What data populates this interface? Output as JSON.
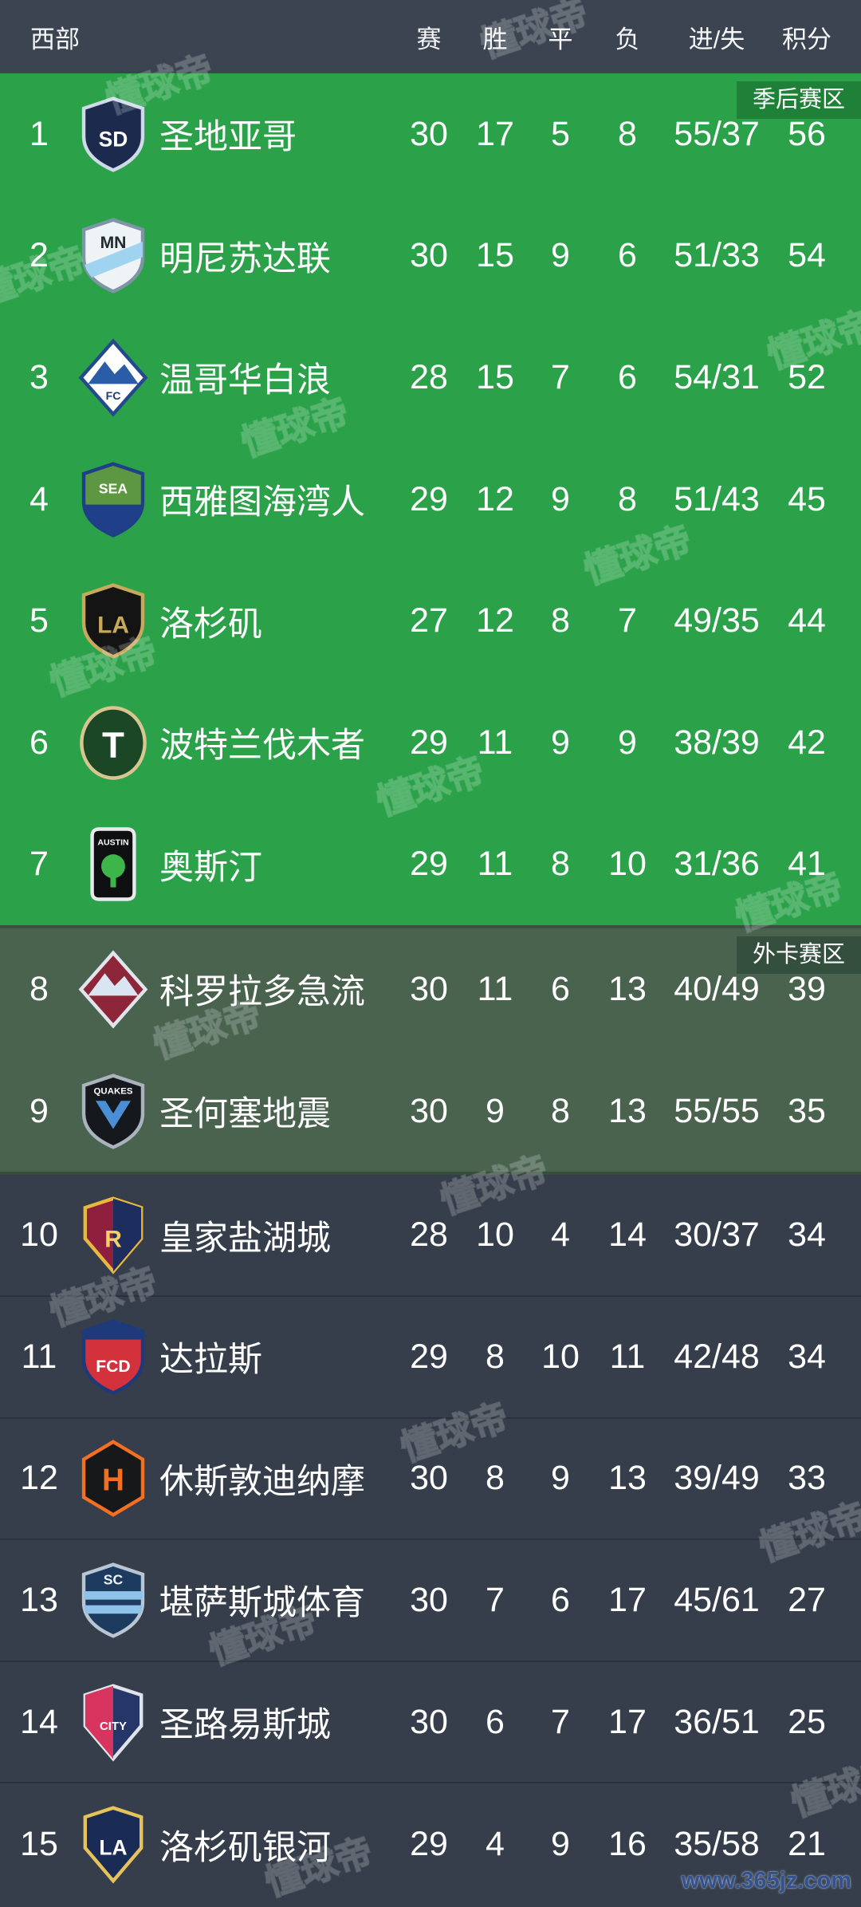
{
  "header": {
    "region_label": "西部",
    "columns": [
      "赛",
      "胜",
      "平",
      "负",
      "进/失",
      "积分"
    ]
  },
  "zones": {
    "playoff": "季后赛区",
    "wildcard": "外卡赛区"
  },
  "watermark": {
    "brand": "懂球帝",
    "site": "www.365jz.com"
  },
  "colors": {
    "header_bg": "#3b4450",
    "playoff_bg": "#2ba24a",
    "playoff_tag_bg": "#1f8038",
    "wildcard_bg": "#49634f",
    "wildcard_tag_bg": "#344f3e",
    "bottom_bg": "#353e4a",
    "row_separator": "#2a313b",
    "text": "#ffffff"
  },
  "teams": [
    {
      "rank": "1",
      "name": "圣地亚哥",
      "played": "30",
      "win": "17",
      "draw": "5",
      "loss": "8",
      "goals": "55/37",
      "points": "56",
      "zone": "playoff",
      "crest": {
        "icon": "san-diego-fc-crest-icon",
        "shape": "shield",
        "fill": "#1c2b4d",
        "stroke": "#cfd9ea",
        "label": "SD",
        "labelColor": "#ffffff",
        "labelSize": 30,
        "labelY": 72
      }
    },
    {
      "rank": "2",
      "name": "明尼苏达联",
      "played": "30",
      "win": "15",
      "draw": "9",
      "loss": "6",
      "goals": "51/33",
      "points": "54",
      "zone": "playoff",
      "crest": {
        "icon": "minnesota-united-crest-icon",
        "shape": "shield",
        "fill": "#eef3f6",
        "stroke": "#7e95a6",
        "accent": {
          "type": "stripe",
          "color": "#9fd3ef"
        },
        "label": "MN",
        "labelColor": "#222a30",
        "labelSize": 24,
        "labelY": 44
      }
    },
    {
      "rank": "3",
      "name": "温哥华白浪",
      "played": "28",
      "win": "15",
      "draw": "7",
      "loss": "6",
      "goals": "54/31",
      "points": "52",
      "zone": "playoff",
      "crest": {
        "icon": "vancouver-whitecaps-crest-icon",
        "shape": "diamond",
        "fill": "#ffffff",
        "stroke": "#234a8c",
        "accent": {
          "type": "mountain",
          "color": "#2a5ca8"
        },
        "label": "FC",
        "labelColor": "#1d3d6e",
        "labelSize": 16,
        "labelY": 86
      }
    },
    {
      "rank": "4",
      "name": "西雅图海湾人",
      "played": "29",
      "win": "12",
      "draw": "9",
      "loss": "8",
      "goals": "51/43",
      "points": "45",
      "zone": "playoff",
      "crest": {
        "icon": "seattle-sounders-crest-icon",
        "shape": "shield",
        "fill": "#5d9741",
        "stroke": "#1f3f88",
        "accent": {
          "type": "band-bottom",
          "color": "#1f3f88"
        },
        "label": "SEA",
        "labelColor": "#ffffff",
        "labelSize": 20,
        "labelY": 46
      }
    },
    {
      "rank": "5",
      "name": "洛杉矶",
      "played": "27",
      "win": "12",
      "draw": "8",
      "loss": "7",
      "goals": "49/35",
      "points": "44",
      "zone": "playoff",
      "crest": {
        "icon": "lafc-crest-icon",
        "shape": "shield",
        "fill": "#141414",
        "stroke": "#c8a95c",
        "label": "LA",
        "labelColor": "#c8a95c",
        "labelSize": 34,
        "labelY": 72
      }
    },
    {
      "rank": "6",
      "name": "波特兰伐木者",
      "played": "29",
      "win": "11",
      "draw": "9",
      "loss": "9",
      "goals": "38/39",
      "points": "42",
      "zone": "playoff",
      "crest": {
        "icon": "portland-timbers-crest-icon",
        "shape": "circle",
        "fill": "#1c4727",
        "stroke": "#d8c690",
        "label": "T",
        "labelColor": "#ffffff",
        "labelSize": 52,
        "labelY": 76
      }
    },
    {
      "rank": "7",
      "name": "奥斯汀",
      "played": "29",
      "win": "11",
      "draw": "8",
      "loss": "10",
      "goals": "31/36",
      "points": "41",
      "zone": "playoff",
      "crest": {
        "icon": "austin-fc-crest-icon",
        "shape": "tallrect",
        "fill": "#0e0f10",
        "stroke": "#e8eaec",
        "accent": {
          "type": "tree",
          "color": "#3cb549"
        },
        "label": "AUSTIN",
        "labelColor": "#ffffff",
        "labelSize": 12,
        "labelY": 28
      }
    },
    {
      "rank": "8",
      "name": "科罗拉多急流",
      "played": "30",
      "win": "11",
      "draw": "6",
      "loss": "13",
      "goals": "40/49",
      "points": "39",
      "zone": "wildcard",
      "crest": {
        "icon": "colorado-rapids-crest-icon",
        "shape": "diamond",
        "fill": "#8c2638",
        "stroke": "#dfe5ea",
        "accent": {
          "type": "mountain",
          "color": "#d9e6f2"
        },
        "label": "",
        "labelColor": "#ffffff",
        "labelSize": 14,
        "labelY": 80
      }
    },
    {
      "rank": "9",
      "name": "圣何塞地震",
      "played": "30",
      "win": "9",
      "draw": "8",
      "loss": "13",
      "goals": "55/55",
      "points": "35",
      "zone": "wildcard",
      "crest": {
        "icon": "san-jose-earthquakes-crest-icon",
        "shape": "shield",
        "fill": "#15181c",
        "stroke": "#aab3bd",
        "accent": {
          "type": "chevron",
          "color": "#4a8fd6"
        },
        "label": "QUAKES",
        "labelColor": "#ffffff",
        "labelSize": 13,
        "labelY": 30
      }
    },
    {
      "rank": "10",
      "name": "皇家盐湖城",
      "played": "28",
      "win": "10",
      "draw": "4",
      "loss": "14",
      "goals": "30/37",
      "points": "34",
      "zone": "bottom",
      "crest": {
        "icon": "real-salt-lake-crest-icon",
        "shape": "pointed",
        "fill": "#8f1f3f",
        "stroke": "#e8b93c",
        "accent": {
          "type": "half-right",
          "color": "#1c2d5e"
        },
        "label": "R",
        "labelColor": "#f3d06a",
        "labelSize": 34,
        "labelY": 72
      }
    },
    {
      "rank": "11",
      "name": "达拉斯",
      "played": "29",
      "win": "8",
      "draw": "10",
      "loss": "11",
      "goals": "42/48",
      "points": "34",
      "zone": "bottom",
      "crest": {
        "icon": "fc-dallas-crest-icon",
        "shape": "shield",
        "fill": "#d3323c",
        "stroke": "#1f3a7a",
        "accent": {
          "type": "band-top",
          "color": "#1f3a7a"
        },
        "label": "FCD",
        "labelColor": "#ffffff",
        "labelSize": 24,
        "labelY": 76
      }
    },
    {
      "rank": "12",
      "name": "休斯敦迪纳摩",
      "played": "30",
      "win": "8",
      "draw": "9",
      "loss": "13",
      "goals": "39/49",
      "points": "33",
      "zone": "bottom",
      "crest": {
        "icon": "houston-dynamo-crest-icon",
        "shape": "hex",
        "fill": "#17181a",
        "stroke": "#f36f21",
        "label": "H",
        "labelColor": "#f36f21",
        "labelSize": 44,
        "labelY": 72
      }
    },
    {
      "rank": "13",
      "name": "堪萨斯城体育",
      "played": "30",
      "win": "7",
      "draw": "6",
      "loss": "17",
      "goals": "45/61",
      "points": "27",
      "zone": "bottom",
      "crest": {
        "icon": "sporting-kc-crest-icon",
        "shape": "shield",
        "fill": "#1d3a5f",
        "stroke": "#b8c6d4",
        "accent": {
          "type": "stripes",
          "color": "#8fc2e8"
        },
        "label": "SC",
        "labelColor": "#eef4fa",
        "labelSize": 20,
        "labelY": 32
      }
    },
    {
      "rank": "14",
      "name": "圣路易斯城",
      "played": "30",
      "win": "6",
      "draw": "7",
      "loss": "17",
      "goals": "36/51",
      "points": "25",
      "zone": "bottom",
      "crest": {
        "icon": "st-louis-city-crest-icon",
        "shape": "pointed",
        "fill": "#263668",
        "stroke": "#e0e4ea",
        "accent": {
          "type": "half-left",
          "color": "#d7355f"
        },
        "label": "CITY",
        "labelColor": "#ffffff",
        "labelSize": 17,
        "labelY": 66
      }
    },
    {
      "rank": "15",
      "name": "洛杉矶银河",
      "played": "29",
      "win": "4",
      "draw": "9",
      "loss": "16",
      "goals": "35/58",
      "points": "21",
      "zone": "bottom",
      "crest": {
        "icon": "la-galaxy-crest-icon",
        "shape": "pointed",
        "fill": "#1a2b55",
        "stroke": "#e5c35a",
        "label": "LA",
        "labelColor": "#ffffff",
        "labelSize": 30,
        "labelY": 70
      }
    }
  ]
}
